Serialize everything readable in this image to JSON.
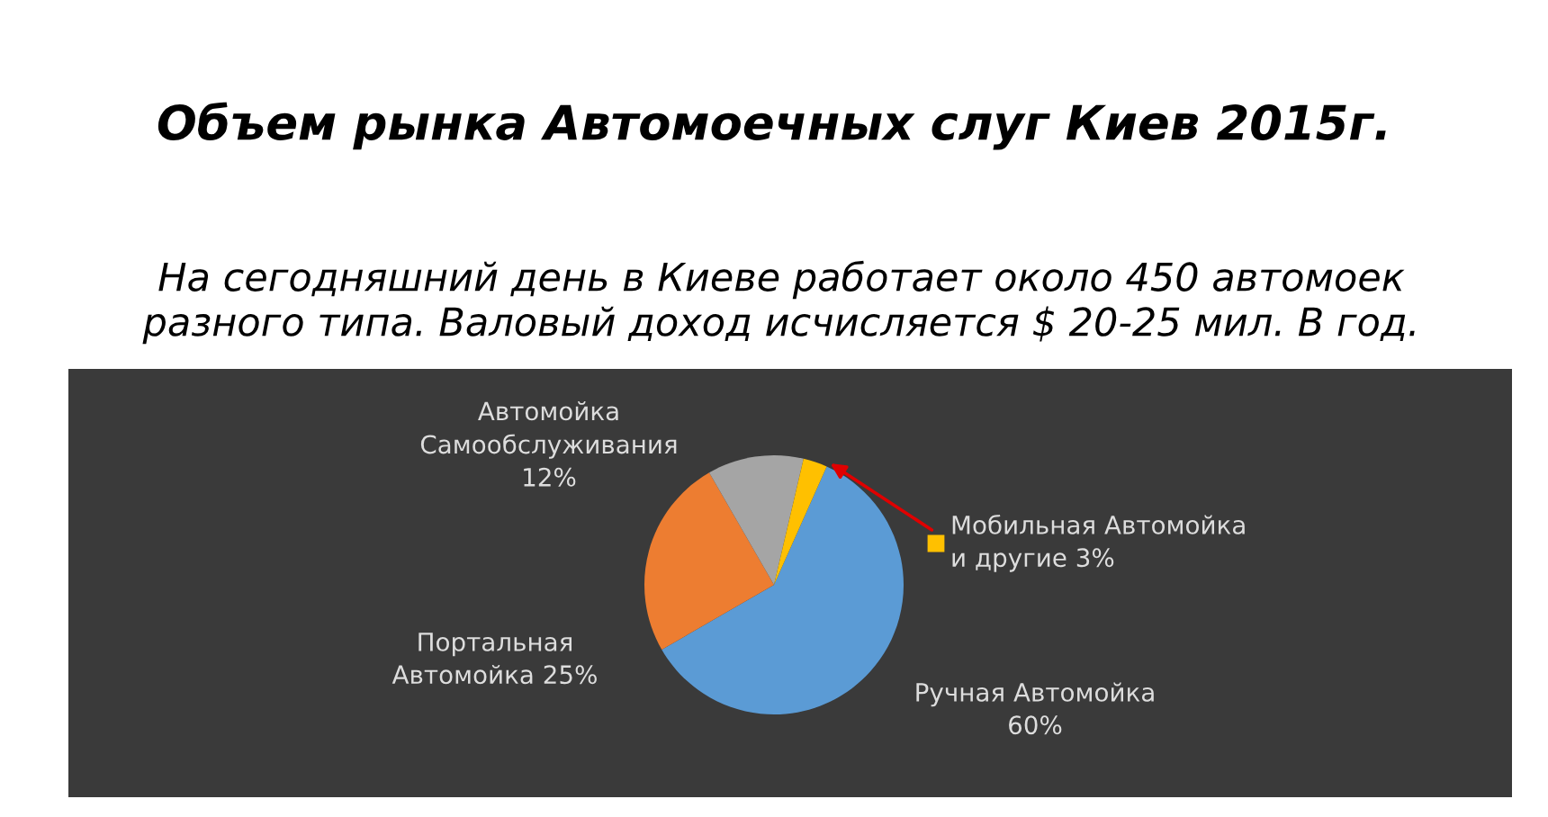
{
  "chart_data": {
    "type": "pie",
    "title": "Объем рынка Автомоечных слуг Киев 2015г.",
    "subtitle": "На сегодняшний день в Киеве работает около 450 автомоек разного типа. Валовый доход исчисляется $ 20-25 мил. В год.",
    "categories": [
      "Ручная Автомойка",
      "Портальная Автомойка",
      "Автомойка Самообслуживания",
      "Мобильная Автомойка и другие"
    ],
    "values": [
      60,
      25,
      12,
      3
    ],
    "value_labels": [
      "60%",
      "25%",
      "12%",
      "3%"
    ],
    "colors": [
      "#5b9bd5",
      "#ed7d31",
      "#a5a5a5",
      "#ffc000"
    ]
  }
}
